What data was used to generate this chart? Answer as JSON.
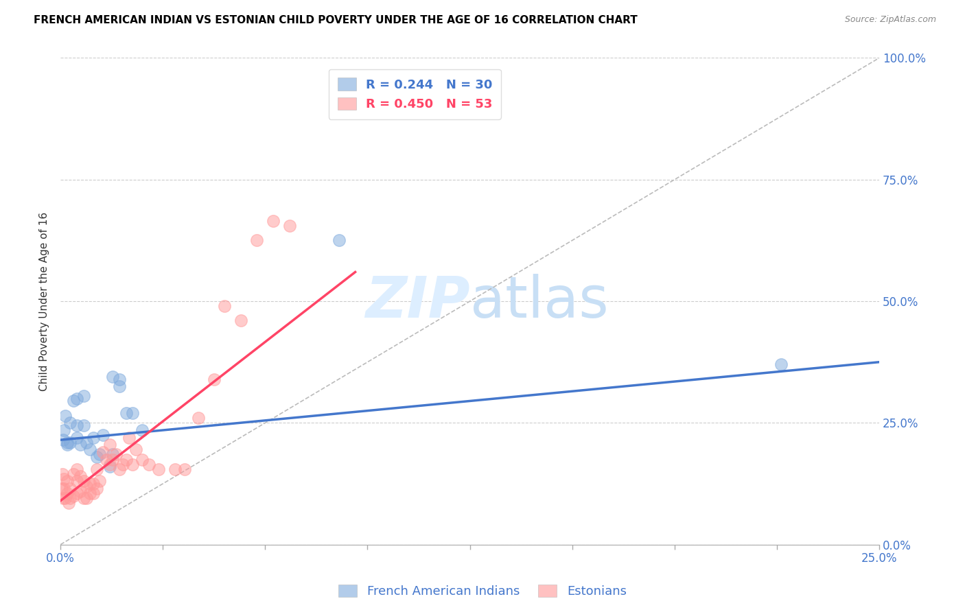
{
  "title": "FRENCH AMERICAN INDIAN VS ESTONIAN CHILD POVERTY UNDER THE AGE OF 16 CORRELATION CHART",
  "source": "Source: ZipAtlas.com",
  "ylabel": "Child Poverty Under the Age of 16",
  "xlim": [
    0.0,
    0.25
  ],
  "ylim": [
    0.0,
    1.0
  ],
  "xticks": [
    0.0,
    0.03125,
    0.0625,
    0.09375,
    0.125,
    0.15625,
    0.1875,
    0.21875,
    0.25
  ],
  "yticks": [
    0.0,
    0.25,
    0.5,
    0.75,
    1.0
  ],
  "xtick_labels_show": [
    "0.0%",
    "25.0%"
  ],
  "xtick_labels_show_vals": [
    0.0,
    0.25
  ],
  "ytick_labels_right": [
    "0.0%",
    "25.0%",
    "50.0%",
    "75.0%",
    "100.0%"
  ],
  "blue_color": "#7FAADD",
  "pink_color": "#FF9999",
  "blue_line_color": "#4477CC",
  "pink_line_color": "#FF4466",
  "diagonal_color": "#BBBBBB",
  "watermark_color": "#DDEEFF",
  "legend_blue_R": "R = 0.244",
  "legend_blue_N": "N = 30",
  "legend_pink_R": "R = 0.450",
  "legend_pink_N": "N = 53",
  "legend_label_blue": "French American Indians",
  "legend_label_pink": "Estonians",
  "blue_points_x": [
    0.0008,
    0.001,
    0.0015,
    0.002,
    0.002,
    0.003,
    0.003,
    0.004,
    0.005,
    0.005,
    0.006,
    0.007,
    0.007,
    0.008,
    0.009,
    0.01,
    0.011,
    0.012,
    0.013,
    0.015,
    0.016,
    0.016,
    0.018,
    0.02,
    0.022,
    0.025,
    0.005,
    0.018,
    0.085,
    0.22
  ],
  "blue_points_y": [
    0.215,
    0.235,
    0.265,
    0.205,
    0.21,
    0.21,
    0.25,
    0.295,
    0.22,
    0.245,
    0.205,
    0.305,
    0.245,
    0.21,
    0.195,
    0.22,
    0.18,
    0.185,
    0.225,
    0.16,
    0.185,
    0.345,
    0.325,
    0.27,
    0.27,
    0.235,
    0.3,
    0.34,
    0.625,
    0.37
  ],
  "pink_points_x": [
    0.0003,
    0.0005,
    0.0008,
    0.001,
    0.001,
    0.0015,
    0.002,
    0.002,
    0.0025,
    0.003,
    0.003,
    0.004,
    0.004,
    0.005,
    0.005,
    0.005,
    0.006,
    0.006,
    0.007,
    0.007,
    0.008,
    0.008,
    0.009,
    0.009,
    0.01,
    0.01,
    0.011,
    0.011,
    0.012,
    0.013,
    0.014,
    0.015,
    0.015,
    0.016,
    0.017,
    0.018,
    0.019,
    0.02,
    0.021,
    0.022,
    0.023,
    0.025,
    0.027,
    0.03,
    0.035,
    0.038,
    0.042,
    0.047,
    0.05,
    0.055,
    0.06,
    0.065,
    0.07
  ],
  "pink_points_y": [
    0.115,
    0.145,
    0.095,
    0.115,
    0.135,
    0.095,
    0.105,
    0.13,
    0.085,
    0.095,
    0.115,
    0.1,
    0.145,
    0.105,
    0.13,
    0.155,
    0.11,
    0.14,
    0.095,
    0.13,
    0.095,
    0.12,
    0.105,
    0.125,
    0.105,
    0.125,
    0.115,
    0.155,
    0.13,
    0.19,
    0.175,
    0.205,
    0.165,
    0.175,
    0.185,
    0.155,
    0.165,
    0.175,
    0.22,
    0.165,
    0.195,
    0.175,
    0.165,
    0.155,
    0.155,
    0.155,
    0.26,
    0.34,
    0.49,
    0.46,
    0.625,
    0.665,
    0.655
  ],
  "blue_trend_x": [
    0.0,
    0.25
  ],
  "blue_trend_y": [
    0.215,
    0.375
  ],
  "pink_trend_x": [
    0.0,
    0.09
  ],
  "pink_trend_y": [
    0.09,
    0.56
  ],
  "title_fontsize": 11,
  "axis_label_fontsize": 11,
  "tick_fontsize": 12,
  "legend_fontsize": 13,
  "watermark_fontsize": 60
}
